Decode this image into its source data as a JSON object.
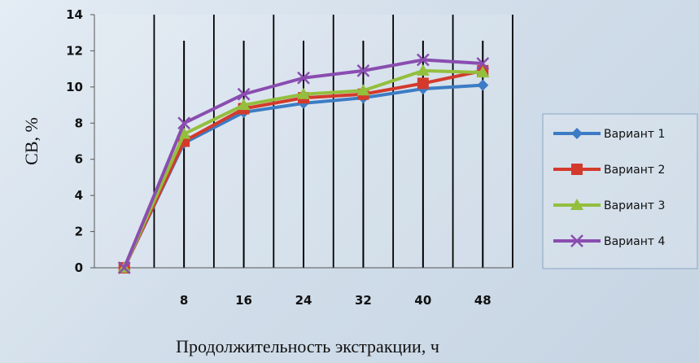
{
  "chart_data": {
    "type": "line",
    "title": "",
    "xlabel": "Продолжительность экстракции, ч",
    "ylabel": "СВ, %",
    "categories": [
      "",
      "8",
      "16",
      "24",
      "32",
      "40",
      "48"
    ],
    "ylim": [
      0,
      14
    ],
    "yticks": [
      0,
      2,
      4,
      6,
      8,
      10,
      12,
      14
    ],
    "grid": "vertical",
    "legend_position": "right",
    "series": [
      {
        "name": "Вариант 1",
        "color": "#3c7cc4",
        "marker": "diamond",
        "values": [
          0,
          6.9,
          8.6,
          9.1,
          9.4,
          9.9,
          10.1
        ]
      },
      {
        "name": "Вариант 2",
        "color": "#d33a2c",
        "marker": "square",
        "values": [
          0,
          7.0,
          8.8,
          9.4,
          9.6,
          10.2,
          10.9
        ]
      },
      {
        "name": "Вариант 3",
        "color": "#93bf3d",
        "marker": "triangle",
        "values": [
          0,
          7.4,
          9.0,
          9.6,
          9.8,
          10.9,
          10.8
        ]
      },
      {
        "name": "Вариант 4",
        "color": "#8a4db0",
        "marker": "cross",
        "values": [
          0,
          8.0,
          9.6,
          10.5,
          10.9,
          11.5,
          11.3
        ]
      }
    ]
  }
}
